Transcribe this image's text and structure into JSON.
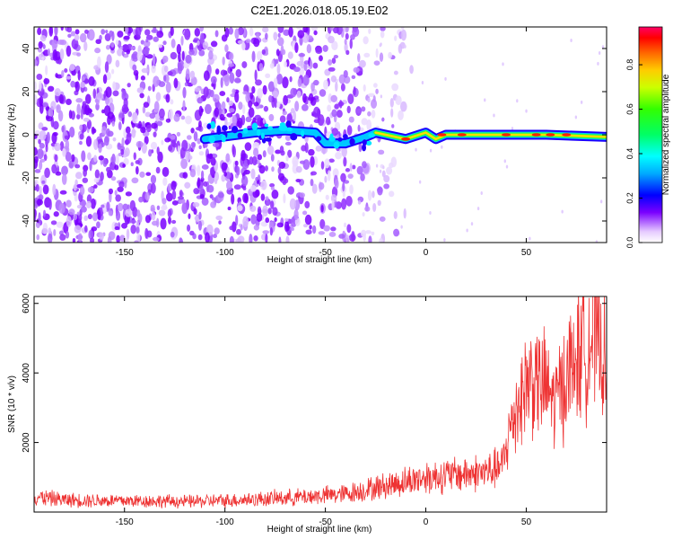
{
  "title": "C2E1.2026.018.05.19.E02",
  "chart_data": [
    {
      "type": "heatmap",
      "xlabel": "Height of straight line (km)",
      "ylabel": "Frequency (Hz)",
      "xlim": [
        -195,
        90
      ],
      "ylim": [
        -50,
        50
      ],
      "x_ticks": [
        -150,
        -100,
        -50,
        0,
        50
      ],
      "y_ticks": [
        -40,
        -20,
        0,
        20,
        40
      ],
      "colorbar": {
        "label": "Normalized spectral amplitude",
        "range": [
          0,
          0.97
        ],
        "ticks": [
          0.0,
          0.2,
          0.4,
          0.6,
          0.8
        ]
      },
      "features": {
        "noise_region_x": [
          -195,
          -25
        ],
        "signal_trace": [
          {
            "x": -110,
            "y": -2
          },
          {
            "x": -85,
            "y": 1
          },
          {
            "x": -70,
            "y": 2
          },
          {
            "x": -55,
            "y": 1
          },
          {
            "x": -50,
            "y": -4
          },
          {
            "x": -40,
            "y": -4
          },
          {
            "x": -30,
            "y": -1
          },
          {
            "x": -25,
            "y": 1
          },
          {
            "x": -20,
            "y": 0
          },
          {
            "x": -10,
            "y": -2
          },
          {
            "x": 0,
            "y": 1
          },
          {
            "x": 5,
            "y": -2
          },
          {
            "x": 10,
            "y": 0
          },
          {
            "x": 30,
            "y": 0
          },
          {
            "x": 60,
            "y": 0
          },
          {
            "x": 90,
            "y": -1
          }
        ]
      }
    },
    {
      "type": "line",
      "xlabel": "Height of straight line (km)",
      "ylabel": "SNR (10 * v/v)",
      "xlim": [
        -195,
        90
      ],
      "ylim": [
        0,
        6200
      ],
      "x_ticks": [
        -150,
        -100,
        -50,
        0,
        50
      ],
      "y_ticks": [
        2000,
        4000,
        6000
      ],
      "color": "#ee3333",
      "series": [
        {
          "x": [
            -195,
            -180,
            -160,
            -140,
            -120,
            -100,
            -80,
            -60,
            -40,
            -25,
            -10,
            0,
            10,
            20,
            30,
            38,
            42,
            46,
            52,
            56,
            60,
            64,
            68,
            72,
            76,
            80,
            84,
            88,
            90
          ],
          "y": [
            450,
            350,
            330,
            320,
            300,
            330,
            380,
            440,
            520,
            700,
            880,
            1000,
            1050,
            1100,
            1150,
            1300,
            2400,
            3200,
            3900,
            3700,
            3600,
            3100,
            3700,
            4100,
            4500,
            4900,
            5100,
            4700,
            3600
          ]
        }
      ]
    }
  ]
}
